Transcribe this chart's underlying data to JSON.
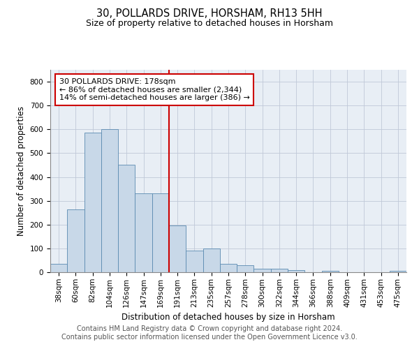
{
  "title1": "30, POLLARDS DRIVE, HORSHAM, RH13 5HH",
  "title2": "Size of property relative to detached houses in Horsham",
  "xlabel": "Distribution of detached houses by size in Horsham",
  "ylabel": "Number of detached properties",
  "categories": [
    "38sqm",
    "60sqm",
    "82sqm",
    "104sqm",
    "126sqm",
    "147sqm",
    "169sqm",
    "191sqm",
    "213sqm",
    "235sqm",
    "257sqm",
    "278sqm",
    "300sqm",
    "322sqm",
    "344sqm",
    "366sqm",
    "388sqm",
    "409sqm",
    "431sqm",
    "453sqm",
    "475sqm"
  ],
  "values": [
    35,
    265,
    585,
    600,
    450,
    330,
    330,
    195,
    90,
    100,
    35,
    30,
    15,
    15,
    10,
    0,
    5,
    0,
    0,
    0,
    5
  ],
  "bar_color": "#c8d8e8",
  "bar_edge_color": "#5a8ab0",
  "vline_index": 7,
  "annotation_title": "30 POLLARDS DRIVE: 178sqm",
  "annotation_line1": "← 86% of detached houses are smaller (2,344)",
  "annotation_line2": "14% of semi-detached houses are larger (386) →",
  "annotation_box_color": "#ffffff",
  "annotation_box_edge": "#cc0000",
  "vline_color": "#cc0000",
  "ylim": [
    0,
    850
  ],
  "yticks": [
    0,
    100,
    200,
    300,
    400,
    500,
    600,
    700,
    800
  ],
  "footer1": "Contains HM Land Registry data © Crown copyright and database right 2024.",
  "footer2": "Contains public sector information licensed under the Open Government Licence v3.0.",
  "background_color": "#ffffff",
  "plot_bg_color": "#e8eef5",
  "grid_color": "#c0c8d8",
  "title1_fontsize": 10.5,
  "title2_fontsize": 9,
  "xlabel_fontsize": 8.5,
  "ylabel_fontsize": 8.5,
  "tick_fontsize": 7.5,
  "annotation_fontsize": 8,
  "footer_fontsize": 7
}
